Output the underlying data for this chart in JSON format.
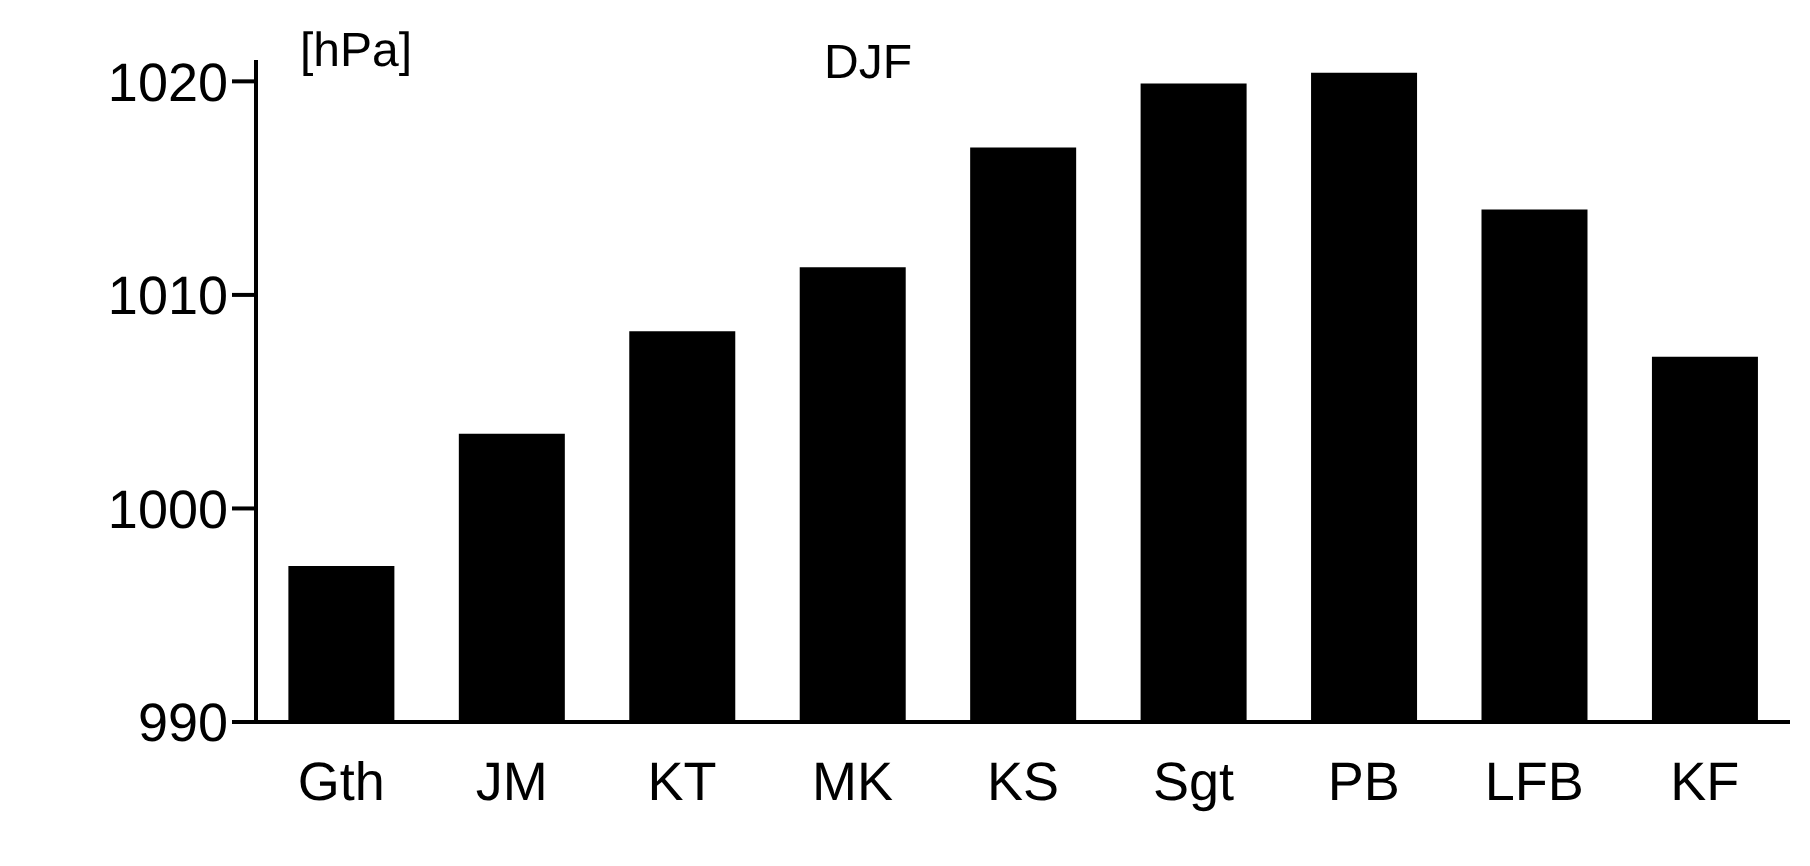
{
  "chart_data": {
    "type": "bar",
    "title": "DJF",
    "ylabel": "[hPa]",
    "categories": [
      "Gth",
      "JM",
      "KT",
      "MK",
      "KS",
      "Sgt",
      "PB",
      "LFB",
      "KF"
    ],
    "values": [
      997.3,
      1003.5,
      1008.3,
      1011.3,
      1016.9,
      1019.9,
      1020.4,
      1014.0,
      1007.1
    ],
    "color": "#000000",
    "ylim": [
      990,
      1021
    ],
    "yticks": [
      990,
      1000,
      1010,
      1020
    ],
    "grid": false
  }
}
